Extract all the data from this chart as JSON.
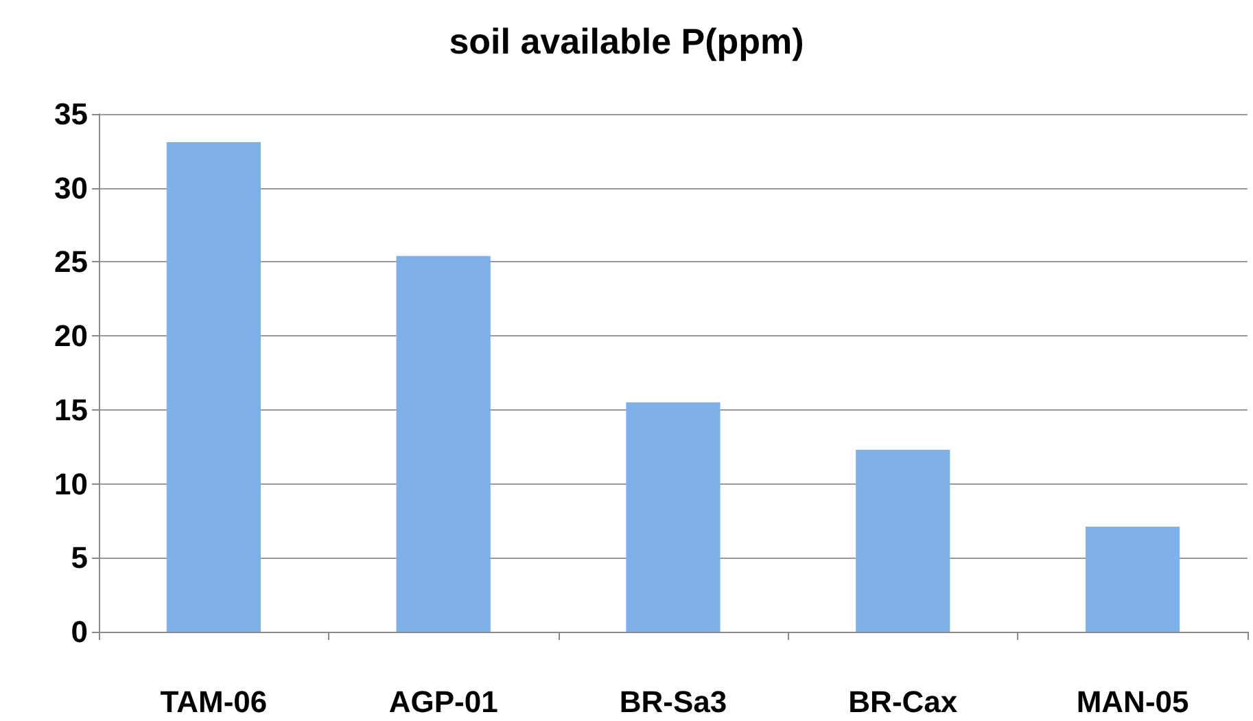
{
  "chart_data": {
    "type": "bar",
    "title": "soil available P(ppm)",
    "categories": [
      "TAM-06",
      "AGP-01",
      "BR-Sa3",
      "BR-Cax",
      "MAN-05"
    ],
    "values": [
      33.1,
      25.4,
      15.5,
      12.3,
      7.1
    ],
    "color": "#7fb0ea",
    "ylim": [
      0,
      35
    ],
    "yticks": [
      0,
      5,
      10,
      15,
      20,
      25,
      30,
      35
    ],
    "grid": "y"
  }
}
